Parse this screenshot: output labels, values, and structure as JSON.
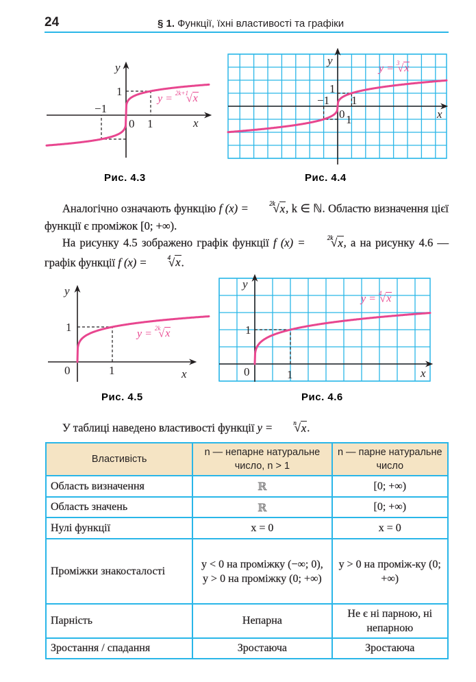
{
  "header": {
    "page_number": "24",
    "section": "§ 1.",
    "title": "Функції, їхні властивості та графіки"
  },
  "colors": {
    "accent": "#29b6e8",
    "curve": "#e8468f",
    "table_header_bg": "#f5e4c4"
  },
  "axes": {
    "x": "x",
    "y": "y",
    "zero": "0",
    "one": "1",
    "minus_one": "−1"
  },
  "figures": [
    {
      "caption": "Рис. 4.3",
      "formula_lhs": "y =",
      "root_index": "2k+1",
      "radicand": "x",
      "grid": false,
      "root_degree": "odd"
    },
    {
      "caption": "Рис. 4.4",
      "formula_lhs": "y =",
      "root_index": "3",
      "radicand": "x",
      "grid": true,
      "root_degree": 3
    },
    {
      "caption": "Рис. 4.5",
      "formula_lhs": "y =",
      "root_index": "2k",
      "radicand": "x",
      "grid": false,
      "root_degree": "even"
    },
    {
      "caption": "Рис. 4.6",
      "formula_lhs": "y =",
      "root_index": "4",
      "radicand": "x",
      "grid": true,
      "root_degree": 4
    }
  ],
  "paragraph1": {
    "t1": "Аналогічно означають функцію ",
    "f": "f (x) = ",
    "idx": "2k",
    "rad": "x",
    "t2": ",  k ∈ ℕ. Областю визначення цієї функції є проміжок [0; +∞)."
  },
  "paragraph2": {
    "t1": "На рисунку 4.5 зображено графік функції ",
    "f1": "f (x) = ",
    "idx1": "2k",
    "rad1": "x",
    "t2": ", а на рисунку 4.6 — графік функції ",
    "f2": "f (x) = ",
    "idx2": "4",
    "rad2": "x",
    "t3": "."
  },
  "paragraph3": {
    "t1": "У таблиці наведено властивості функції ",
    "f": "y = ",
    "idx": "n",
    "rad": "x",
    "t2": "."
  },
  "table": {
    "headers": [
      "Властивість",
      "n — непарне натуральне число, n > 1",
      "n — парне натуральне число"
    ],
    "rows": [
      [
        "Область визначення",
        "ℝ",
        "[0; +∞)"
      ],
      [
        "Область значень",
        "ℝ",
        "[0; +∞)"
      ],
      [
        "Нулі функції",
        "x = 0",
        "x = 0"
      ],
      [
        "Проміжки знакосталості",
        "y < 0 на проміжку (−∞; 0), y > 0 на проміжку (0; +∞)",
        "y > 0 на проміж-ку (0; +∞)"
      ],
      [
        "Парність",
        "Непарна",
        "Не є ні парною, ні непарною"
      ],
      [
        "Зростання / спадання",
        "Зростаюча",
        "Зростаюча"
      ]
    ]
  }
}
